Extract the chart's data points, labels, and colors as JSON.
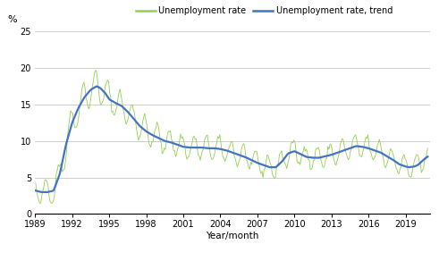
{
  "title": "",
  "ylabel": "%",
  "xlabel": "Year/month",
  "legend_labels": [
    "Unemployment rate",
    "Unemployment rate, trend"
  ],
  "line_color_actual": "#92d050",
  "line_color_trend": "#4472c4",
  "ylim": [
    0,
    25
  ],
  "yticks": [
    0,
    5,
    10,
    15,
    20,
    25
  ],
  "xlim_start": 1989.0,
  "xlim_end": 2021.0,
  "xtick_years": [
    1989,
    1992,
    1995,
    1998,
    2001,
    2004,
    2007,
    2010,
    2013,
    2016,
    2019
  ],
  "grid_color": "#c8c8c8",
  "bg_color": "#ffffff",
  "actual_lw": 0.6,
  "trend_lw": 1.6
}
